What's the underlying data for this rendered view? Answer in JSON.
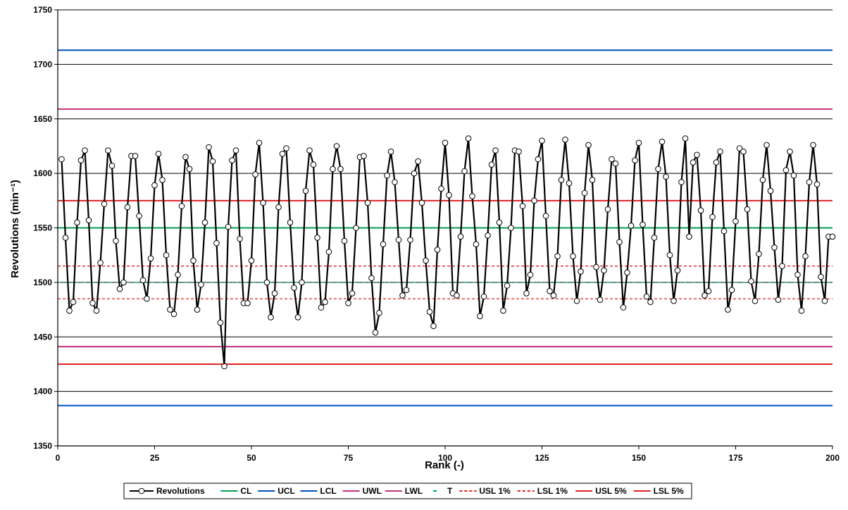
{
  "chart_data": {
    "type": "line",
    "title": "",
    "xlabel": "Rank (-)",
    "ylabel": "Revolutions (min⁻¹)",
    "xlim": [
      0,
      200
    ],
    "ylim": [
      1350,
      1750
    ],
    "x_ticks": [
      "0",
      "25",
      "50",
      "75",
      "100",
      "125",
      "150",
      "175",
      "200"
    ],
    "y_ticks": [
      "1350",
      "1400",
      "1450",
      "1500",
      "1550",
      "1600",
      "1650",
      "1700",
      "1750"
    ],
    "grid": true,
    "legend_position": "bottom",
    "series": [
      {
        "name": "Revolutions",
        "color": "#000000",
        "marker": "circle",
        "x": [
          1,
          2,
          3,
          4,
          5,
          6,
          7,
          8,
          9,
          10,
          11,
          12,
          13,
          14,
          15,
          16,
          17,
          18,
          19,
          20,
          21,
          22,
          23,
          24,
          25,
          26,
          27,
          28,
          29,
          30,
          31,
          32,
          33,
          34,
          35,
          36,
          37,
          38,
          39,
          40,
          41,
          42,
          43,
          44,
          45,
          46,
          47,
          48,
          49,
          50,
          51,
          52,
          53,
          54,
          55,
          56,
          57,
          58,
          59,
          60,
          61,
          62,
          63,
          64,
          65,
          66,
          67,
          68,
          69,
          70,
          71,
          72,
          73,
          74,
          75,
          76,
          77,
          78,
          79,
          80,
          81,
          82,
          83,
          84,
          85,
          86,
          87,
          88,
          89,
          90,
          91,
          92,
          93,
          94,
          95,
          96,
          97,
          98,
          99,
          100,
          101,
          102,
          103,
          104,
          105,
          106,
          107,
          108,
          109,
          110,
          111,
          112,
          113,
          114,
          115,
          116,
          117,
          118,
          119,
          120,
          121,
          122,
          123,
          124,
          125,
          126,
          127,
          128,
          129,
          130,
          131,
          132,
          133,
          134,
          135,
          136,
          137,
          138,
          139,
          140,
          141,
          142,
          143,
          144,
          145,
          146,
          147,
          148,
          149,
          150,
          151,
          152,
          153,
          154,
          155,
          156,
          157,
          158,
          159,
          160,
          161,
          162,
          163,
          164,
          165,
          166,
          167,
          168,
          169,
          170,
          171,
          172,
          173,
          174,
          175,
          176,
          177,
          178,
          179,
          180,
          181,
          182,
          183,
          184,
          185,
          186,
          187,
          188,
          189,
          190,
          191,
          192,
          193,
          194,
          195,
          196,
          197,
          198,
          199,
          200
        ],
        "y": [
          1613,
          1541,
          1474,
          1482,
          1555,
          1612,
          1621,
          1557,
          1481,
          1474,
          1518,
          1572,
          1621,
          1607,
          1538,
          1494,
          1500,
          1569,
          1616,
          1616,
          1561,
          1502,
          1485,
          1522,
          1589,
          1618,
          1594,
          1525,
          1475,
          1471,
          1507,
          1570,
          1615,
          1604,
          1520,
          1475,
          1498,
          1555,
          1624,
          1611,
          1536,
          1463,
          1423,
          1551,
          1612,
          1621,
          1540,
          1481,
          1481,
          1520,
          1599,
          1628,
          1573,
          1500,
          1468,
          1490,
          1569,
          1618,
          1623,
          1555,
          1495,
          1468,
          1500,
          1584,
          1621,
          1608,
          1541,
          1477,
          1482,
          1528,
          1604,
          1625,
          1604,
          1538,
          1481,
          1490,
          1550,
          1615,
          1616,
          1573,
          1504,
          1454,
          1472,
          1535,
          1598,
          1620,
          1592,
          1539,
          1488,
          1493,
          1539,
          1600,
          1611,
          1573,
          1520,
          1473,
          1460,
          1530,
          1586,
          1628,
          1580,
          1490,
          1488,
          1542,
          1602,
          1632,
          1579,
          1535,
          1469,
          1487,
          1543,
          1608,
          1621,
          1555,
          1474,
          1497,
          1550,
          1621,
          1620,
          1570,
          1490,
          1507,
          1575,
          1613,
          1630,
          1561,
          1492,
          1488,
          1524,
          1594,
          1631,
          1591,
          1524,
          1483,
          1510,
          1582,
          1626,
          1594,
          1514,
          1484,
          1511,
          1567,
          1613,
          1609,
          1537,
          1477,
          1509,
          1552,
          1612,
          1628,
          1553,
          1487,
          1482,
          1541,
          1604,
          1629,
          1597,
          1525,
          1483,
          1511,
          1592,
          1632,
          1542,
          1610,
          1617,
          1566,
          1488,
          1492,
          1560,
          1610,
          1620,
          1547,
          1475,
          1493,
          1556,
          1623,
          1620,
          1567,
          1501,
          1483,
          1526,
          1594,
          1626,
          1584,
          1532,
          1484,
          1515,
          1603,
          1620,
          1598,
          1507,
          1474,
          1524,
          1592,
          1626,
          1590,
          1505,
          1483,
          1542,
          1542
        ]
      },
      {
        "name": "CL",
        "color": "#00a050",
        "style": "solid",
        "y": 1550
      },
      {
        "name": "UCL",
        "color": "#0050c0",
        "style": "solid",
        "y": 1713
      },
      {
        "name": "LCL",
        "color": "#0050c0",
        "style": "solid",
        "y": 1387
      },
      {
        "name": "UWL",
        "color": "#c0307a",
        "style": "solid",
        "y": 1659
      },
      {
        "name": "LWL",
        "color": "#c0307a",
        "style": "solid",
        "y": 1441
      },
      {
        "name": "T",
        "color": "#00a050",
        "style": "dashdot",
        "y": 1500
      },
      {
        "name": "USL 1%",
        "color": "#e02020",
        "style": "dashed",
        "y": 1515
      },
      {
        "name": "LSL 1%",
        "color": "#e02020",
        "style": "dashed",
        "y": 1485
      },
      {
        "name": "USL 5%",
        "color": "#e02020",
        "style": "solid",
        "y": 1575
      },
      {
        "name": "LSL 5%",
        "color": "#e02020",
        "style": "solid",
        "y": 1425
      }
    ]
  }
}
